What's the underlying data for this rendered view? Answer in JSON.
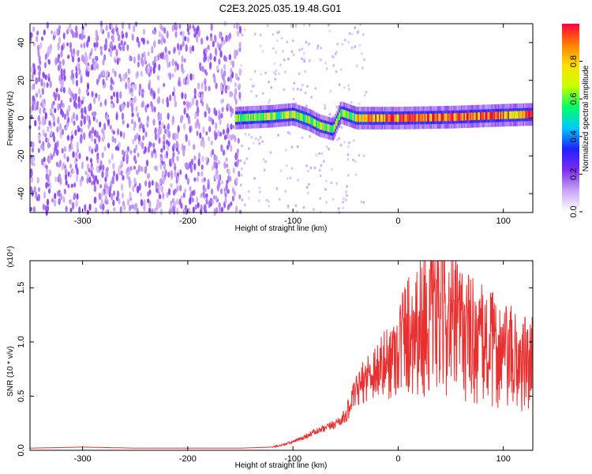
{
  "figure": {
    "title": "C2E3.2025.035.19.48.G01"
  },
  "chart_data": [
    {
      "type": "heatmap",
      "xlabel": "Height of straight line (km)",
      "ylabel": "Frequency (Hz)",
      "xlim": [
        -350,
        128
      ],
      "ylim": [
        -50,
        50
      ],
      "xticks": [
        "-300",
        "-200",
        "-100",
        "0",
        "100"
      ],
      "xtick_values": [
        -300,
        -200,
        -100,
        0,
        100
      ],
      "yticks": [
        "-40",
        "-20",
        "0",
        "20",
        "40"
      ],
      "ytick_values": [
        -40,
        -20,
        0,
        20,
        40
      ],
      "colorbar": {
        "label": "Normalized spectral amplitude",
        "range": [
          0,
          1
        ],
        "ticks": [
          "0.0",
          "0.2",
          "0.4",
          "0.6",
          "0.8"
        ],
        "tick_values": [
          0,
          0.2,
          0.4,
          0.6,
          0.8
        ],
        "colormap": [
          "#ffffff",
          "#c9a6f5",
          "#7c2cf0",
          "#2020ff",
          "#00c8ff",
          "#00ff66",
          "#c8ff00",
          "#ffe000",
          "#ff7f00",
          "#ff0040"
        ]
      },
      "features": [
        {
          "name": "noise",
          "x_range": [
            -350,
            -150
          ],
          "y_range": [
            -50,
            50
          ],
          "amplitude": 0.12
        },
        {
          "name": "carrier",
          "x": [
            -155,
            -120,
            -100,
            -85,
            -75,
            -62,
            -55,
            -40,
            0,
            50,
            100,
            128
          ],
          "y": [
            0,
            1,
            2,
            -1,
            -4,
            -6,
            3,
            0,
            0,
            0.5,
            1.5,
            2
          ],
          "amplitude": 0.6
        }
      ]
    },
    {
      "type": "line",
      "xlabel": "Height of straight line (km)",
      "ylabel": "SNR (10 * v/v)",
      "yunit": "(x10⁴)",
      "xlim": [
        -350,
        128
      ],
      "ylim": [
        0,
        1.75
      ],
      "xticks": [
        "-300",
        "-200",
        "-100",
        "0",
        "100"
      ],
      "xtick_values": [
        -300,
        -200,
        -100,
        0,
        100
      ],
      "yticks": [
        "0.0",
        "0.5",
        "1.0",
        "1.5"
      ],
      "ytick_values": [
        0,
        0.5,
        1.0,
        1.5
      ],
      "color": "#e83030",
      "series": [
        {
          "x": [
            -350,
            -300,
            -250,
            -200,
            -150,
            -120,
            -110,
            -100,
            -90,
            -80,
            -70,
            -60,
            -50,
            -45,
            -40,
            -35,
            -30,
            -25,
            -20,
            -15,
            -10,
            -5,
            0,
            5,
            10,
            15,
            20,
            25,
            30,
            35,
            40,
            45,
            50,
            55,
            60,
            65,
            70,
            75,
            80,
            85,
            90,
            95,
            100,
            105,
            110,
            115,
            120,
            128
          ],
          "y": [
            0.02,
            0.03,
            0.02,
            0.02,
            0.02,
            0.03,
            0.05,
            0.08,
            0.12,
            0.17,
            0.2,
            0.25,
            0.32,
            0.45,
            0.55,
            0.62,
            0.7,
            0.75,
            0.78,
            0.8,
            0.85,
            0.9,
            1.0,
            1.1,
            1.15,
            1.2,
            1.22,
            1.25,
            1.28,
            1.3,
            1.3,
            1.28,
            1.25,
            1.2,
            1.18,
            1.12,
            1.1,
            1.05,
            1.02,
            1.0,
            0.98,
            0.95,
            0.92,
            0.9,
            0.88,
            0.86,
            0.84,
            0.82
          ]
        }
      ]
    }
  ]
}
